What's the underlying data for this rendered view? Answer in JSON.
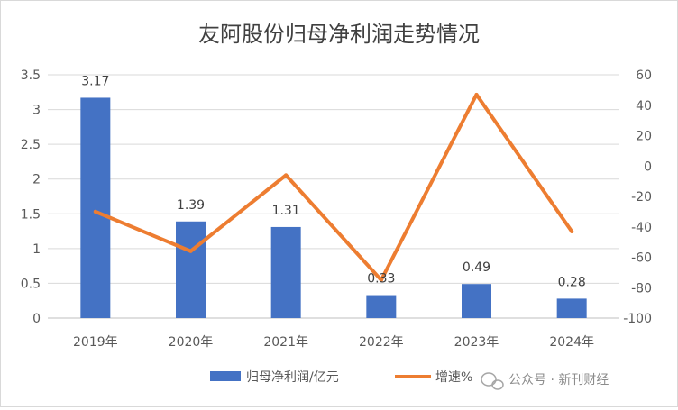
{
  "chart_data": {
    "type": "bar",
    "title": "友阿股份归母净利润走势情况",
    "categories": [
      "2019年",
      "2020年",
      "2021年",
      "2022年",
      "2023年",
      "2024年"
    ],
    "series": [
      {
        "name": "归母净利润/亿元",
        "type": "bar",
        "axis": "left",
        "color": "#4472c4",
        "values": [
          3.17,
          1.39,
          1.31,
          0.33,
          0.49,
          0.28
        ],
        "labels": [
          "3.17",
          "1.39",
          "1.31",
          "0.33",
          "0.49",
          "0.28"
        ]
      },
      {
        "name": "增速%",
        "type": "line",
        "axis": "right",
        "color": "#ed7d31",
        "values": [
          -30,
          -56,
          -6,
          -75,
          47,
          -43
        ]
      }
    ],
    "y_left": {
      "min": 0,
      "max": 3.5,
      "step": 0.5,
      "tick_labels": [
        "0",
        "0.5",
        "1",
        "1.5",
        "2",
        "2.5",
        "3",
        "3.5"
      ]
    },
    "y_right": {
      "min": -100,
      "max": 60,
      "step": 20,
      "tick_labels": [
        "-100",
        "-80",
        "-60",
        "-40",
        "-20",
        "0",
        "20",
        "40",
        "60"
      ]
    },
    "grid": true,
    "legend_position": "bottom-right"
  },
  "watermark": {
    "icon": "wechat-icon",
    "text": "公众号 · 新刊财经"
  }
}
